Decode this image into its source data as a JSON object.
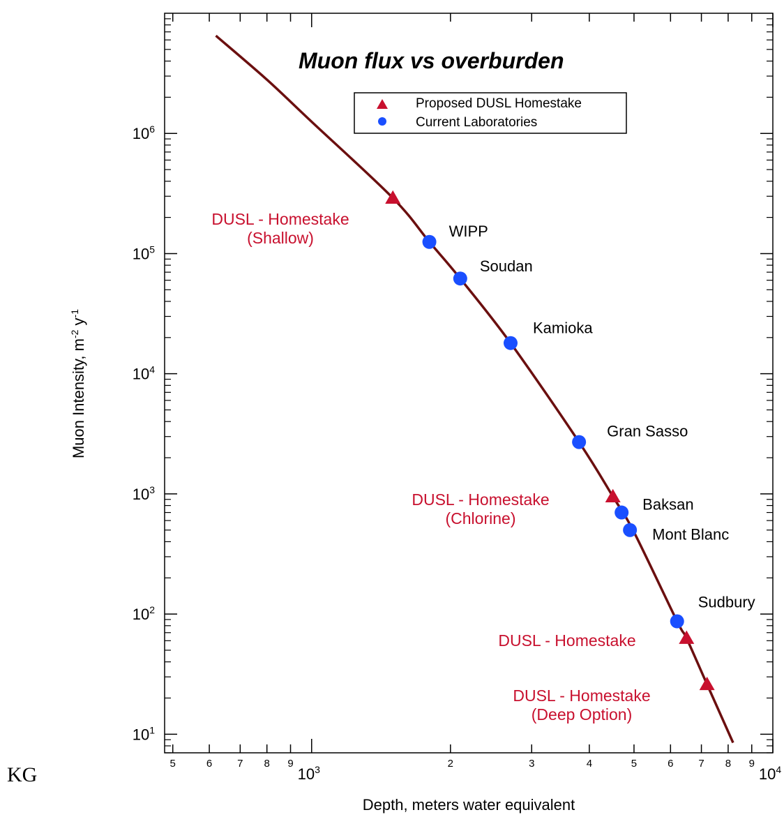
{
  "corner_text": "KG",
  "chart_data": {
    "type": "scatter",
    "title": "Muon flux vs overburden",
    "xlabel": "Depth, meters water equivalent",
    "ylabel": "Muon Intensity, m-2 y-1",
    "xscale": "log",
    "yscale": "log",
    "xlim": [
      480,
      10000
    ],
    "ylim": [
      7,
      10000000
    ],
    "x_major_ticks": [
      {
        "value": 1000,
        "base": "10",
        "exp": "3"
      },
      {
        "value": 10000,
        "base": "10",
        "exp": "4"
      }
    ],
    "x_minor_ticks": [
      {
        "value": 500,
        "label": "5"
      },
      {
        "value": 600,
        "label": "6"
      },
      {
        "value": 700,
        "label": "7"
      },
      {
        "value": 800,
        "label": "8"
      },
      {
        "value": 900,
        "label": "9"
      },
      {
        "value": 2000,
        "label": "2"
      },
      {
        "value": 3000,
        "label": "3"
      },
      {
        "value": 4000,
        "label": "4"
      },
      {
        "value": 5000,
        "label": "5"
      },
      {
        "value": 6000,
        "label": "6"
      },
      {
        "value": 7000,
        "label": "7"
      },
      {
        "value": 8000,
        "label": "8"
      },
      {
        "value": 9000,
        "label": "9"
      }
    ],
    "y_major_ticks": [
      {
        "value": 10,
        "base": "10",
        "exp": "1"
      },
      {
        "value": 100,
        "base": "10",
        "exp": "2"
      },
      {
        "value": 1000,
        "base": "10",
        "exp": "3"
      },
      {
        "value": 10000,
        "base": "10",
        "exp": "4"
      },
      {
        "value": 100000,
        "base": "10",
        "exp": "5"
      },
      {
        "value": 1000000,
        "base": "10",
        "exp": "6"
      }
    ],
    "legend": {
      "position": "top-right",
      "entries": [
        {
          "label": "Proposed DUSL Homestake",
          "marker": "triangle",
          "color": "#c8102e"
        },
        {
          "label": "Current Laboratories",
          "marker": "circle",
          "color": "#1a4fff"
        }
      ]
    },
    "curve": {
      "color": "#6b0f0f",
      "points": [
        [
          620,
          6500000
        ],
        [
          800,
          2800000
        ],
        [
          1000,
          1250000
        ],
        [
          1500,
          290000
        ],
        [
          1800,
          125000
        ],
        [
          2100,
          62000
        ],
        [
          2700,
          18000
        ],
        [
          3800,
          2700
        ],
        [
          4500,
          950
        ],
        [
          5000,
          480
        ],
        [
          6200,
          87
        ],
        [
          6500,
          63
        ],
        [
          7200,
          26
        ],
        [
          8200,
          8.5
        ]
      ]
    },
    "series": [
      {
        "name": "Current Laboratories",
        "marker": "circle",
        "color": "#1a4fff",
        "points": [
          {
            "label": "WIPP",
            "x": 1800,
            "y": 125000
          },
          {
            "label": "Soudan",
            "x": 2100,
            "y": 62000
          },
          {
            "label": "Kamioka",
            "x": 2700,
            "y": 18000
          },
          {
            "label": "Gran Sasso",
            "x": 3800,
            "y": 2700
          },
          {
            "label": "Baksan",
            "x": 4700,
            "y": 700
          },
          {
            "label": "Mont Blanc",
            "x": 4900,
            "y": 500
          },
          {
            "label": "Sudbury",
            "x": 6200,
            "y": 87
          }
        ]
      },
      {
        "name": "Proposed DUSL Homestake",
        "marker": "triangle",
        "color": "#c8102e",
        "points": [
          {
            "label": "DUSL - Homestake",
            "label2": "(Shallow)",
            "x": 1500,
            "y": 290000
          },
          {
            "label": "DUSL - Homestake",
            "label2": "(Chlorine)",
            "x": 4500,
            "y": 950
          },
          {
            "label": "DUSL - Homestake",
            "label2": "",
            "x": 6500,
            "y": 63
          },
          {
            "label": "DUSL - Homestake",
            "label2": "(Deep Option)",
            "x": 7200,
            "y": 26
          }
        ]
      }
    ]
  }
}
